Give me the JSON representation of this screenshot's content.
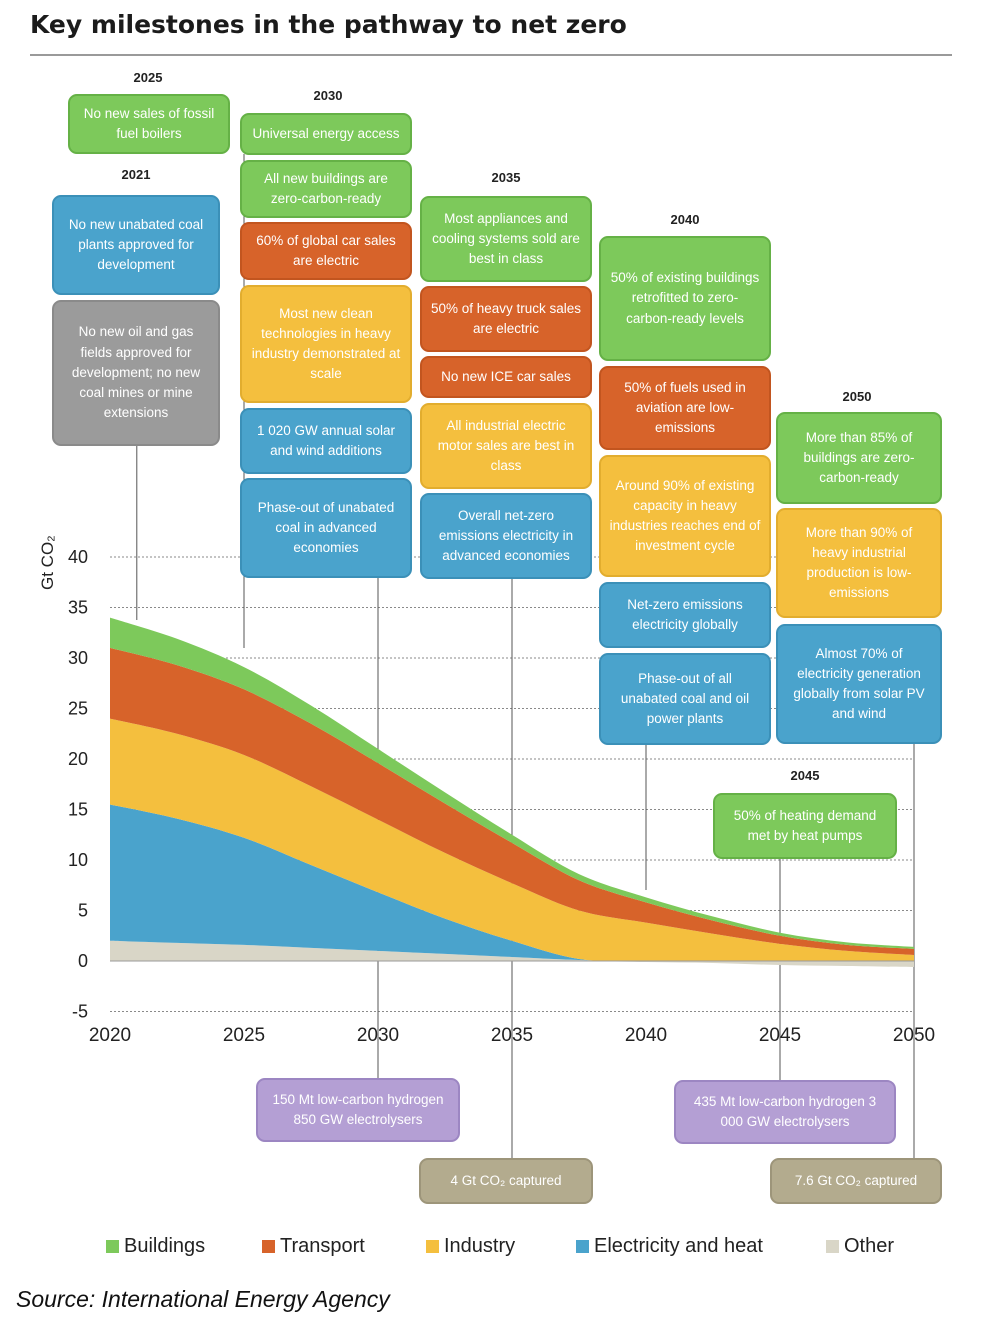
{
  "title": "Key milestones in the pathway to net zero",
  "source": "Source: International Energy Agency",
  "chart_data": {
    "type": "area",
    "ylabel": "Gt CO₂",
    "xlim": [
      2020,
      2050
    ],
    "ylim": [
      -5,
      40
    ],
    "x_ticks": [
      2020,
      2025,
      2030,
      2035,
      2040,
      2045,
      2050
    ],
    "y_ticks": [
      -5,
      0,
      5,
      10,
      15,
      20,
      25,
      30,
      35,
      40
    ],
    "x": [
      2020,
      2022.5,
      2025,
      2027.5,
      2030,
      2032.5,
      2035,
      2037.5,
      2040,
      2042.5,
      2045,
      2047.5,
      2050
    ],
    "series": [
      {
        "name": "Other",
        "color": "#d9d6c7",
        "values": [
          2.0,
          1.8,
          1.6,
          1.3,
          1.0,
          0.7,
          0.4,
          0.1,
          -0.1,
          -0.2,
          -0.4,
          -0.5,
          -0.6
        ]
      },
      {
        "name": "Electricity and heat",
        "color": "#4aa3cc",
        "values": [
          13.5,
          12.3,
          10.6,
          8.2,
          5.8,
          3.5,
          1.6,
          0.1,
          -0.5,
          -0.5,
          -0.4,
          -0.3,
          -0.2
        ]
      },
      {
        "name": "Industry",
        "color": "#f4bf3e",
        "values": [
          8.5,
          8.4,
          8.2,
          7.8,
          7.2,
          6.5,
          5.7,
          4.8,
          3.8,
          2.7,
          1.7,
          1.0,
          0.6
        ]
      },
      {
        "name": "Transport",
        "color": "#d7632a",
        "values": [
          7.0,
          6.8,
          6.5,
          6.2,
          5.6,
          4.9,
          4.0,
          3.0,
          2.0,
          1.3,
          0.8,
          0.6,
          0.6
        ]
      },
      {
        "name": "Buildings",
        "color": "#7dc95b",
        "values": [
          3.0,
          2.6,
          2.2,
          1.8,
          1.4,
          1.1,
          0.8,
          0.6,
          0.5,
          0.4,
          0.3,
          0.25,
          0.2
        ]
      }
    ]
  },
  "legend": [
    {
      "label": "Buildings",
      "color": "#7dc95b"
    },
    {
      "label": "Transport",
      "color": "#d7632a"
    },
    {
      "label": "Industry",
      "color": "#f4bf3e"
    },
    {
      "label": "Electricity and heat",
      "color": "#4aa3cc"
    },
    {
      "label": "Other",
      "color": "#d9d6c7"
    }
  ],
  "years": {
    "y2025": "2025",
    "y2030": "2030",
    "y2021": "2021",
    "y2035": "2035",
    "y2040": "2040",
    "y2050": "2050",
    "y2045": "2045"
  },
  "milestones": {
    "m2025_boilers": "No new sales of fossil fuel boilers",
    "m2021_coal": "No new unabated coal plants approved for development",
    "m2021_oil": "No new oil and gas fields approved for development; no new coal mines or mine extensions",
    "m2030_access": "Universal energy access",
    "m2030_buildings": "All new buildings are zero-carbon-ready",
    "m2030_cars": "60% of global car sales are electric",
    "m2030_clean": "Most new clean technologies in heavy industry demonstrated at scale",
    "m2030_solar": "1 020 GW annual solar and wind additions",
    "m2030_coal": "Phase-out of unabated coal in advanced economies",
    "m2035_appliances": "Most appliances and cooling systems sold are best in class",
    "m2035_truck": "50% of heavy truck sales are electric",
    "m2035_ice": "No new ICE car sales",
    "m2035_motor": "All industrial electric motor sales are best in class",
    "m2035_netzero": "Overall net-zero emissions electricity in advanced economies",
    "m2040_retrofit": "50% of existing buildings retrofitted to zero-carbon-ready levels",
    "m2040_aviation": "50% of fuels used in aviation are low-emissions",
    "m2040_industry": "Around 90% of existing capacity in heavy industries reaches end of investment cycle",
    "m2040_netzero": "Net-zero emissions electricity globally",
    "m2040_phaseout": "Phase-out of all unabated coal and oil power plants",
    "m2050_buildings": "More than 85% of buildings are zero-carbon-ready",
    "m2050_industry": "More than 90% of heavy industrial production is low-emissions",
    "m2050_solar": "Almost 70% of electricity generation globally from solar PV and wind",
    "m2045_heat": "50% of heating demand met by heat pumps",
    "b2030_h2": "150 Mt low-carbon hydrogen 850 GW electrolysers",
    "b2035_ccs": "4 Gt CO₂ captured",
    "b2045_h2": "435 Mt low-carbon hydrogen 3 000 GW electrolysers",
    "b2050_ccs": "7.6 Gt CO₂ captured"
  }
}
